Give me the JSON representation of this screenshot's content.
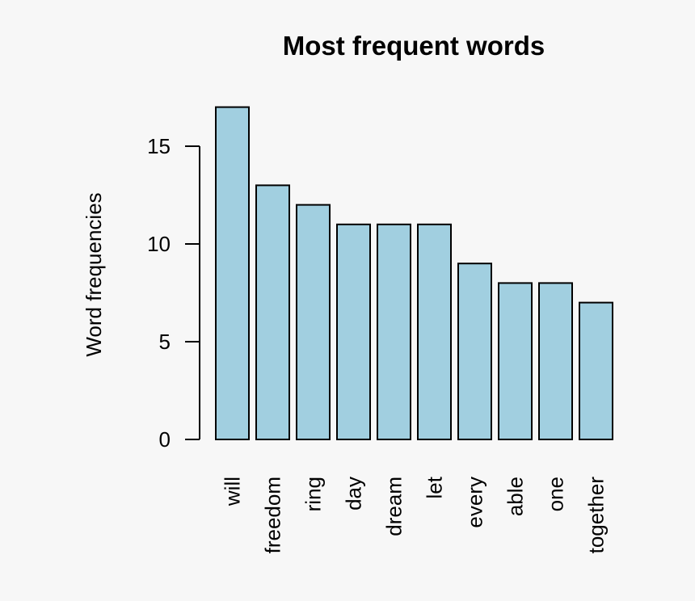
{
  "chart_data": {
    "type": "bar",
    "title": "Most frequent words",
    "xlabel": "",
    "ylabel": "Word frequencies",
    "categories": [
      "will",
      "freedom",
      "ring",
      "day",
      "dream",
      "let",
      "every",
      "able",
      "one",
      "together"
    ],
    "values": [
      17,
      13,
      12,
      11,
      11,
      11,
      9,
      8,
      8,
      7
    ],
    "ylim": [
      0,
      17
    ],
    "yticks": [
      0,
      5,
      10,
      15
    ],
    "bar_color": "#a1cfe0",
    "grid": false,
    "legend": "none"
  }
}
